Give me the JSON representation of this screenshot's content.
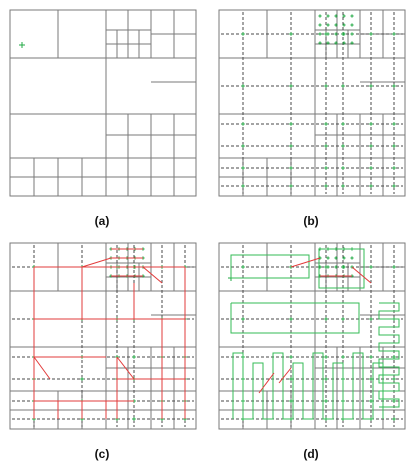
{
  "panels": [
    {
      "id": "a",
      "label": "(a)"
    },
    {
      "id": "b",
      "label": "(b)"
    },
    {
      "id": "c",
      "label": "(c)"
    },
    {
      "id": "d",
      "label": "(d)"
    }
  ],
  "colors": {
    "grid": "#7a7a7a",
    "dashed": "#4a4a4a",
    "node": "#22aa44",
    "path_red": "#e23b3b",
    "path_green": "#33bb55"
  }
}
